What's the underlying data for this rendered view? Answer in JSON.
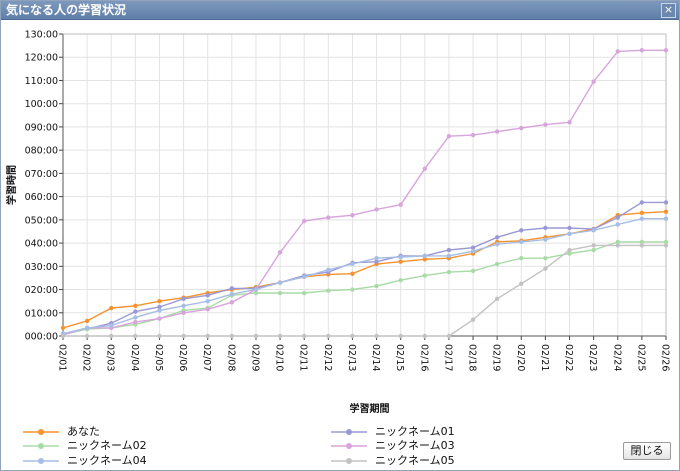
{
  "window": {
    "title": "気になる人の学習状況",
    "close_icon": "×",
    "close_button_label": "閉じる"
  },
  "chart_data": {
    "type": "line",
    "title": "",
    "ylabel": "学習時間",
    "xlabel": "学習期間",
    "ylim": [
      0,
      130
    ],
    "y_tick_values": [
      0,
      10,
      20,
      30,
      40,
      50,
      60,
      70,
      80,
      90,
      100,
      110,
      120,
      130
    ],
    "y_tick_labels": [
      "000:00",
      "010:00",
      "020:00",
      "030:00",
      "040:00",
      "050:00",
      "060:00",
      "070:00",
      "080:00",
      "090:00",
      "100:00",
      "110:00",
      "120:00",
      "130:00"
    ],
    "categories": [
      "02/01",
      "02/02",
      "02/03",
      "02/04",
      "02/05",
      "02/06",
      "02/07",
      "02/08",
      "02/09",
      "02/10",
      "02/11",
      "02/12",
      "02/13",
      "02/14",
      "02/15",
      "02/16",
      "02/17",
      "02/18",
      "02/19",
      "02/20",
      "02/21",
      "02/22",
      "02/23",
      "02/24",
      "02/25",
      "02/26"
    ],
    "grid": true,
    "legend_position": "bottom",
    "series": [
      {
        "name": "あなた",
        "color": "#f5922e",
        "values": [
          3.5,
          6.5,
          12,
          13,
          15,
          16.5,
          18.5,
          20,
          21,
          23,
          25.5,
          26.5,
          26.8,
          31,
          32,
          33,
          33.5,
          35.5,
          40.5,
          41,
          42.5,
          44,
          46,
          52,
          53,
          53.5
        ]
      },
      {
        "name": "ニックネーム01",
        "color": "#9a99d6",
        "values": [
          1,
          3,
          5.5,
          10.5,
          12.5,
          16,
          17.5,
          20.5,
          20.5,
          23,
          26,
          27.5,
          31.5,
          32,
          34.5,
          34.5,
          37,
          38,
          42.5,
          45.5,
          46.5,
          46.5,
          46,
          51,
          57.5,
          57.5
        ]
      },
      {
        "name": "ニックネーム02",
        "color": "#a8dba6",
        "values": [
          0.5,
          3,
          3.5,
          5,
          7.5,
          11,
          12,
          17.5,
          18.5,
          18.5,
          18.5,
          19.5,
          20,
          21.5,
          24,
          26,
          27.5,
          28,
          31,
          33.5,
          33.5,
          35.5,
          37,
          40.5,
          40.5,
          40.5
        ]
      },
      {
        "name": "ニックネーム03",
        "color": "#d8a4dc",
        "values": [
          0.5,
          3.5,
          3.5,
          6,
          7.5,
          10,
          11.5,
          14.5,
          20,
          36,
          49.5,
          51,
          52,
          54.5,
          56.5,
          72,
          86,
          86.5,
          88,
          89.5,
          91,
          92,
          109.5,
          122.5,
          123,
          123
        ]
      },
      {
        "name": "ニックネーム04",
        "color": "#a6bde6",
        "values": [
          1,
          3.5,
          4.5,
          8,
          11,
          13,
          15,
          18,
          20,
          23,
          25.5,
          28.5,
          31,
          33.5,
          34,
          34.5,
          34.5,
          36.5,
          39.5,
          40.5,
          41.5,
          44,
          45.5,
          48,
          50.5,
          50.5
        ]
      },
      {
        "name": "ニックネーム05",
        "color": "#c2c2c2",
        "values": [
          0,
          0,
          0,
          0,
          0,
          0,
          0,
          0,
          0,
          0,
          0,
          0,
          0,
          0,
          0,
          0,
          0,
          7,
          16,
          22.5,
          29,
          37,
          39,
          39,
          39,
          39
        ]
      }
    ]
  }
}
